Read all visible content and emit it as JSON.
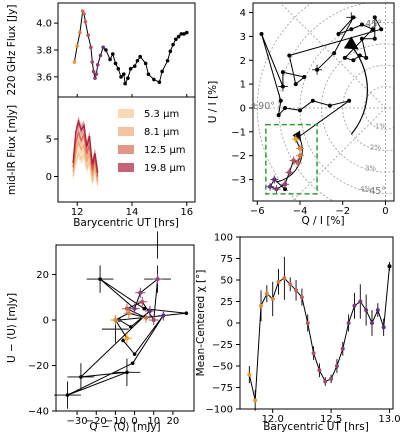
{
  "colors": {
    "sub_axes": "#ffffff",
    "ink": "#000000",
    "orange": "#f0a020",
    "purple": "#5a2d82",
    "box": "#2e9e2e",
    "grid": "#999999",
    "s53": "#f6c89a",
    "s81": "#f0aa72",
    "s125": "#d86a52",
    "s198": "#b0203a"
  },
  "chart_data": [
    {
      "id": "a_top",
      "type": "line",
      "ylabel": "220 GHz Flux [Jy]",
      "xlim": [
        11.3,
        16.3
      ],
      "ylim": [
        3.45,
        4.15
      ],
      "yticks": [
        3.6,
        3.8,
        4.0
      ],
      "ytick_labels": [
        "3.6",
        "3.8",
        "4.0"
      ],
      "series": [
        {
          "points": [
            [
              11.9,
              3.71
            ],
            [
              12.0,
              3.83
            ],
            [
              12.1,
              3.93
            ],
            [
              12.2,
              4.09
            ],
            [
              12.25,
              4.07
            ],
            [
              12.3,
              4.01
            ],
            [
              12.4,
              3.91
            ],
            [
              12.5,
              3.82
            ],
            [
              12.55,
              3.71
            ],
            [
              12.6,
              3.64
            ],
            [
              12.65,
              3.59
            ],
            [
              12.7,
              3.62
            ],
            [
              12.75,
              3.69
            ],
            [
              12.85,
              3.76
            ],
            [
              12.95,
              3.82
            ],
            [
              13.05,
              3.8
            ],
            [
              13.2,
              3.73
            ],
            [
              13.3,
              3.77
            ],
            [
              13.4,
              3.7
            ],
            [
              13.5,
              3.66
            ],
            [
              13.6,
              3.6
            ],
            [
              13.7,
              3.62
            ],
            [
              13.75,
              3.55
            ],
            [
              13.85,
              3.59
            ],
            [
              13.95,
              3.66
            ],
            [
              14.1,
              3.68
            ],
            [
              14.2,
              3.72
            ],
            [
              14.3,
              3.75
            ],
            [
              14.5,
              3.7
            ],
            [
              14.6,
              3.62
            ],
            [
              14.8,
              3.58
            ],
            [
              15.0,
              3.56
            ],
            [
              15.1,
              3.64
            ],
            [
              15.3,
              3.72
            ],
            [
              15.4,
              3.79
            ],
            [
              15.5,
              3.84
            ],
            [
              15.6,
              3.88
            ],
            [
              15.7,
              3.9
            ],
            [
              15.8,
              3.92
            ],
            [
              15.9,
              3.92
            ],
            [
              16.0,
              3.93
            ]
          ],
          "color_range": [
            11.9,
            13.0
          ]
        }
      ]
    },
    {
      "id": "a_bottom",
      "type": "line",
      "ylabel": "mid-IR Flux [mJy]",
      "xlabel": "Barycentric UT [hrs]",
      "xlim": [
        11.3,
        16.3
      ],
      "ylim": [
        -3.4,
        10.6
      ],
      "yticks": [
        0,
        5
      ],
      "ytick_labels": [
        "0",
        "5"
      ],
      "xticks": [
        12,
        14,
        16
      ],
      "xtick_labels": [
        "12",
        "14",
        "16"
      ],
      "x": [
        11.85,
        11.95,
        12.05,
        12.15,
        12.25,
        12.35,
        12.45,
        12.55,
        12.65,
        12.75
      ],
      "legend_placement": "right",
      "series": [
        {
          "name": "5.3 $\\mu$m",
          "label": "5.3 μm",
          "color_key": "s53",
          "values": [
            0.0,
            2.0,
            3.1,
            2.3,
            3.0,
            1.0,
            2.1,
            -0.8,
            1.0,
            -1.1
          ]
        },
        {
          "name": "8.1 $\\mu$m",
          "label": "8.1 μm",
          "color_key": "s81",
          "values": [
            0.6,
            3.2,
            4.6,
            3.6,
            4.2,
            2.0,
            3.1,
            0.1,
            1.6,
            -0.6
          ]
        },
        {
          "name": "12.5 $\\mu$m",
          "label": "12.5 μm",
          "color_key": "s125",
          "values": [
            1.2,
            4.5,
            5.9,
            4.8,
            5.6,
            3.0,
            4.2,
            0.8,
            2.4,
            0.0
          ]
        },
        {
          "name": "19.8 $\\mu$m",
          "label": "19.8 μm",
          "color_key": "s198",
          "values": [
            1.8,
            5.9,
            7.3,
            6.2,
            6.8,
            4.0,
            5.4,
            1.6,
            3.1,
            0.5
          ]
        }
      ]
    },
    {
      "id": "b",
      "type": "scatter",
      "xlabel": "Q / I [%]",
      "ylabel": "U / I [%]",
      "xlim": [
        -6.2,
        0.4
      ],
      "ylim": [
        -3.9,
        4.4
      ],
      "xticks": [
        -6,
        -4,
        -2,
        0
      ],
      "xtick_labels": [
        "−6",
        "−4",
        "−2",
        "0"
      ],
      "yticks": [
        -3,
        -2,
        -1,
        0,
        1,
        2,
        3,
        4
      ],
      "ytick_labels": [
        "−3",
        "−2",
        "−1",
        "0",
        "1",
        "2",
        "3",
        "4"
      ],
      "rings": [
        1,
        2,
        3,
        4,
        5,
        6
      ],
      "ring_labels": [
        "1%",
        "2%",
        "3%",
        "4%",
        "5%"
      ],
      "angle_labels": [
        "45°",
        "±90°",
        "−45°"
      ],
      "points": [
        [
          -3.2,
          1.6
        ],
        [
          -2.4,
          2.3
        ],
        [
          -1.5,
          3.8
        ],
        [
          -2.2,
          3.1
        ],
        [
          -1.6,
          3.3
        ],
        [
          -1.1,
          3.5
        ],
        [
          -0.6,
          3.3
        ],
        [
          -1.9,
          2.1
        ],
        [
          -1.5,
          2.0
        ],
        [
          -1.2,
          2.2
        ],
        [
          -0.9,
          2.1
        ],
        [
          -1.1,
          2.9
        ],
        [
          -0.5,
          2.9
        ],
        [
          -0.5,
          3.8
        ],
        [
          -0.2,
          3.3
        ],
        [
          -4.5,
          2.2
        ],
        [
          -4.2,
          1.0
        ],
        [
          -3.8,
          1.3
        ],
        [
          -4.8,
          1.5
        ],
        [
          -4.8,
          0.9
        ],
        [
          -5.8,
          3.1
        ],
        [
          -4.9,
          0.3
        ],
        [
          -5.0,
          -0.3
        ],
        [
          -4.7,
          0.0
        ],
        [
          -4.0,
          -0.1
        ],
        [
          -3.4,
          0.3
        ],
        [
          -2.6,
          0.1
        ],
        [
          -1.7,
          0.3
        ],
        [
          -4.2,
          -1.3
        ],
        [
          -4.0,
          -1.7
        ],
        [
          -4.0,
          -2.0
        ],
        [
          -4.1,
          -2.3
        ],
        [
          -4.3,
          -2.2
        ],
        [
          -4.5,
          -2.7
        ],
        [
          -4.7,
          -3.2
        ],
        [
          -5.1,
          -3.4
        ],
        [
          -5.4,
          -3.3
        ],
        [
          -5.2,
          -3.0
        ],
        [
          -4.7,
          -3.4
        ]
      ],
      "highlight": [
        [
          -4.2,
          -1.3
        ],
        [
          -4.0,
          -1.7
        ],
        [
          -4.0,
          -2.0
        ],
        [
          -4.1,
          -2.3
        ],
        [
          -4.3,
          -2.2
        ],
        [
          -4.5,
          -2.7
        ],
        [
          -4.7,
          -3.2
        ],
        [
          -5.1,
          -3.4
        ],
        [
          -5.4,
          -3.3
        ],
        [
          -5.2,
          -3.0
        ]
      ],
      "box": [
        [
          -5.6,
          -3.6
        ],
        [
          -3.2,
          -0.7
        ]
      ]
    },
    {
      "id": "c",
      "type": "scatter",
      "xlabel": "Q − ⟨Q⟩ [mJy]",
      "ylabel": "U − ⟨U⟩ [mJy]",
      "xlim": [
        -41,
        31
      ],
      "ylim": [
        -40,
        33
      ],
      "xticks": [
        -30,
        -20,
        -10,
        0,
        10,
        20
      ],
      "xtick_labels": [
        "−30",
        "−20",
        "−10",
        "0",
        "10",
        "20"
      ],
      "yticks": [
        -40,
        -20,
        0,
        20
      ],
      "ytick_labels": [
        "−40",
        "−20",
        "0",
        "20"
      ],
      "points": [
        [
          -4,
          -8
        ],
        [
          -10,
          0
        ],
        [
          -3,
          3
        ],
        [
          6,
          1
        ],
        [
          -4,
          5
        ],
        [
          4,
          8
        ],
        [
          10,
          0
        ],
        [
          12,
          18
        ],
        [
          3,
          12
        ],
        [
          0,
          5
        ],
        [
          -18,
          18
        ],
        [
          5,
          5
        ],
        [
          27,
          3
        ],
        [
          -8,
          0
        ],
        [
          -2,
          -3
        ],
        [
          8,
          4
        ],
        [
          -28,
          -25
        ],
        [
          -4,
          -23
        ],
        [
          -35,
          -33
        ],
        [
          -1,
          -19
        ],
        [
          15,
          2
        ],
        [
          0,
          -15
        ],
        [
          -6,
          -9
        ]
      ],
      "colored": [
        [
          -4,
          -8
        ],
        [
          -10,
          0
        ],
        [
          -3,
          3
        ],
        [
          6,
          1
        ],
        [
          -4,
          5
        ],
        [
          4,
          8
        ],
        [
          10,
          0
        ],
        [
          12,
          18
        ],
        [
          3,
          12
        ],
        [
          0,
          5
        ],
        [
          8,
          4
        ],
        [
          15,
          2
        ]
      ],
      "crosses": [
        [
          12,
          33
        ],
        [
          -18,
          18
        ],
        [
          12,
          18
        ],
        [
          -10,
          -4
        ],
        [
          -35,
          -33
        ],
        [
          -28,
          -25
        ],
        [
          -4,
          -23
        ]
      ]
    },
    {
      "id": "d",
      "type": "line",
      "xlabel": "Barycentric UT [hrs]",
      "ylabel": "Mean-Centered χ [°]",
      "xlim": [
        11.72,
        13.03
      ],
      "ylim": [
        -100,
        100
      ],
      "xticks": [
        12.0,
        12.5,
        13.0
      ],
      "xtick_labels": [
        "12.0",
        "12.5",
        "13.0"
      ],
      "yticks": [
        -100,
        -75,
        -50,
        -25,
        0,
        25,
        50,
        75,
        100
      ],
      "ytick_labels": [
        "−100",
        "−75",
        "−50",
        "−25",
        "0",
        "25",
        "50",
        "75",
        "100"
      ],
      "x": [
        11.8,
        11.85,
        11.9,
        11.95,
        12.0,
        12.05,
        12.1,
        12.15,
        12.2,
        12.25,
        12.3,
        12.35,
        12.4,
        12.45,
        12.5,
        12.55,
        12.6,
        12.65,
        12.7,
        12.75,
        12.8,
        12.85,
        12.9,
        12.95,
        13.0
      ],
      "values": [
        -60,
        -90,
        20,
        34,
        28,
        48,
        52,
        45,
        38,
        30,
        0,
        -35,
        -55,
        -68,
        -65,
        -50,
        -30,
        0,
        20,
        25,
        15,
        0,
        15,
        -5,
        66
      ],
      "err": [
        10,
        12,
        18,
        10,
        20,
        15,
        25,
        8,
        12,
        10,
        10,
        8,
        8,
        5,
        5,
        8,
        8,
        10,
        15,
        20,
        18,
        15,
        8,
        10,
        5
      ]
    }
  ]
}
